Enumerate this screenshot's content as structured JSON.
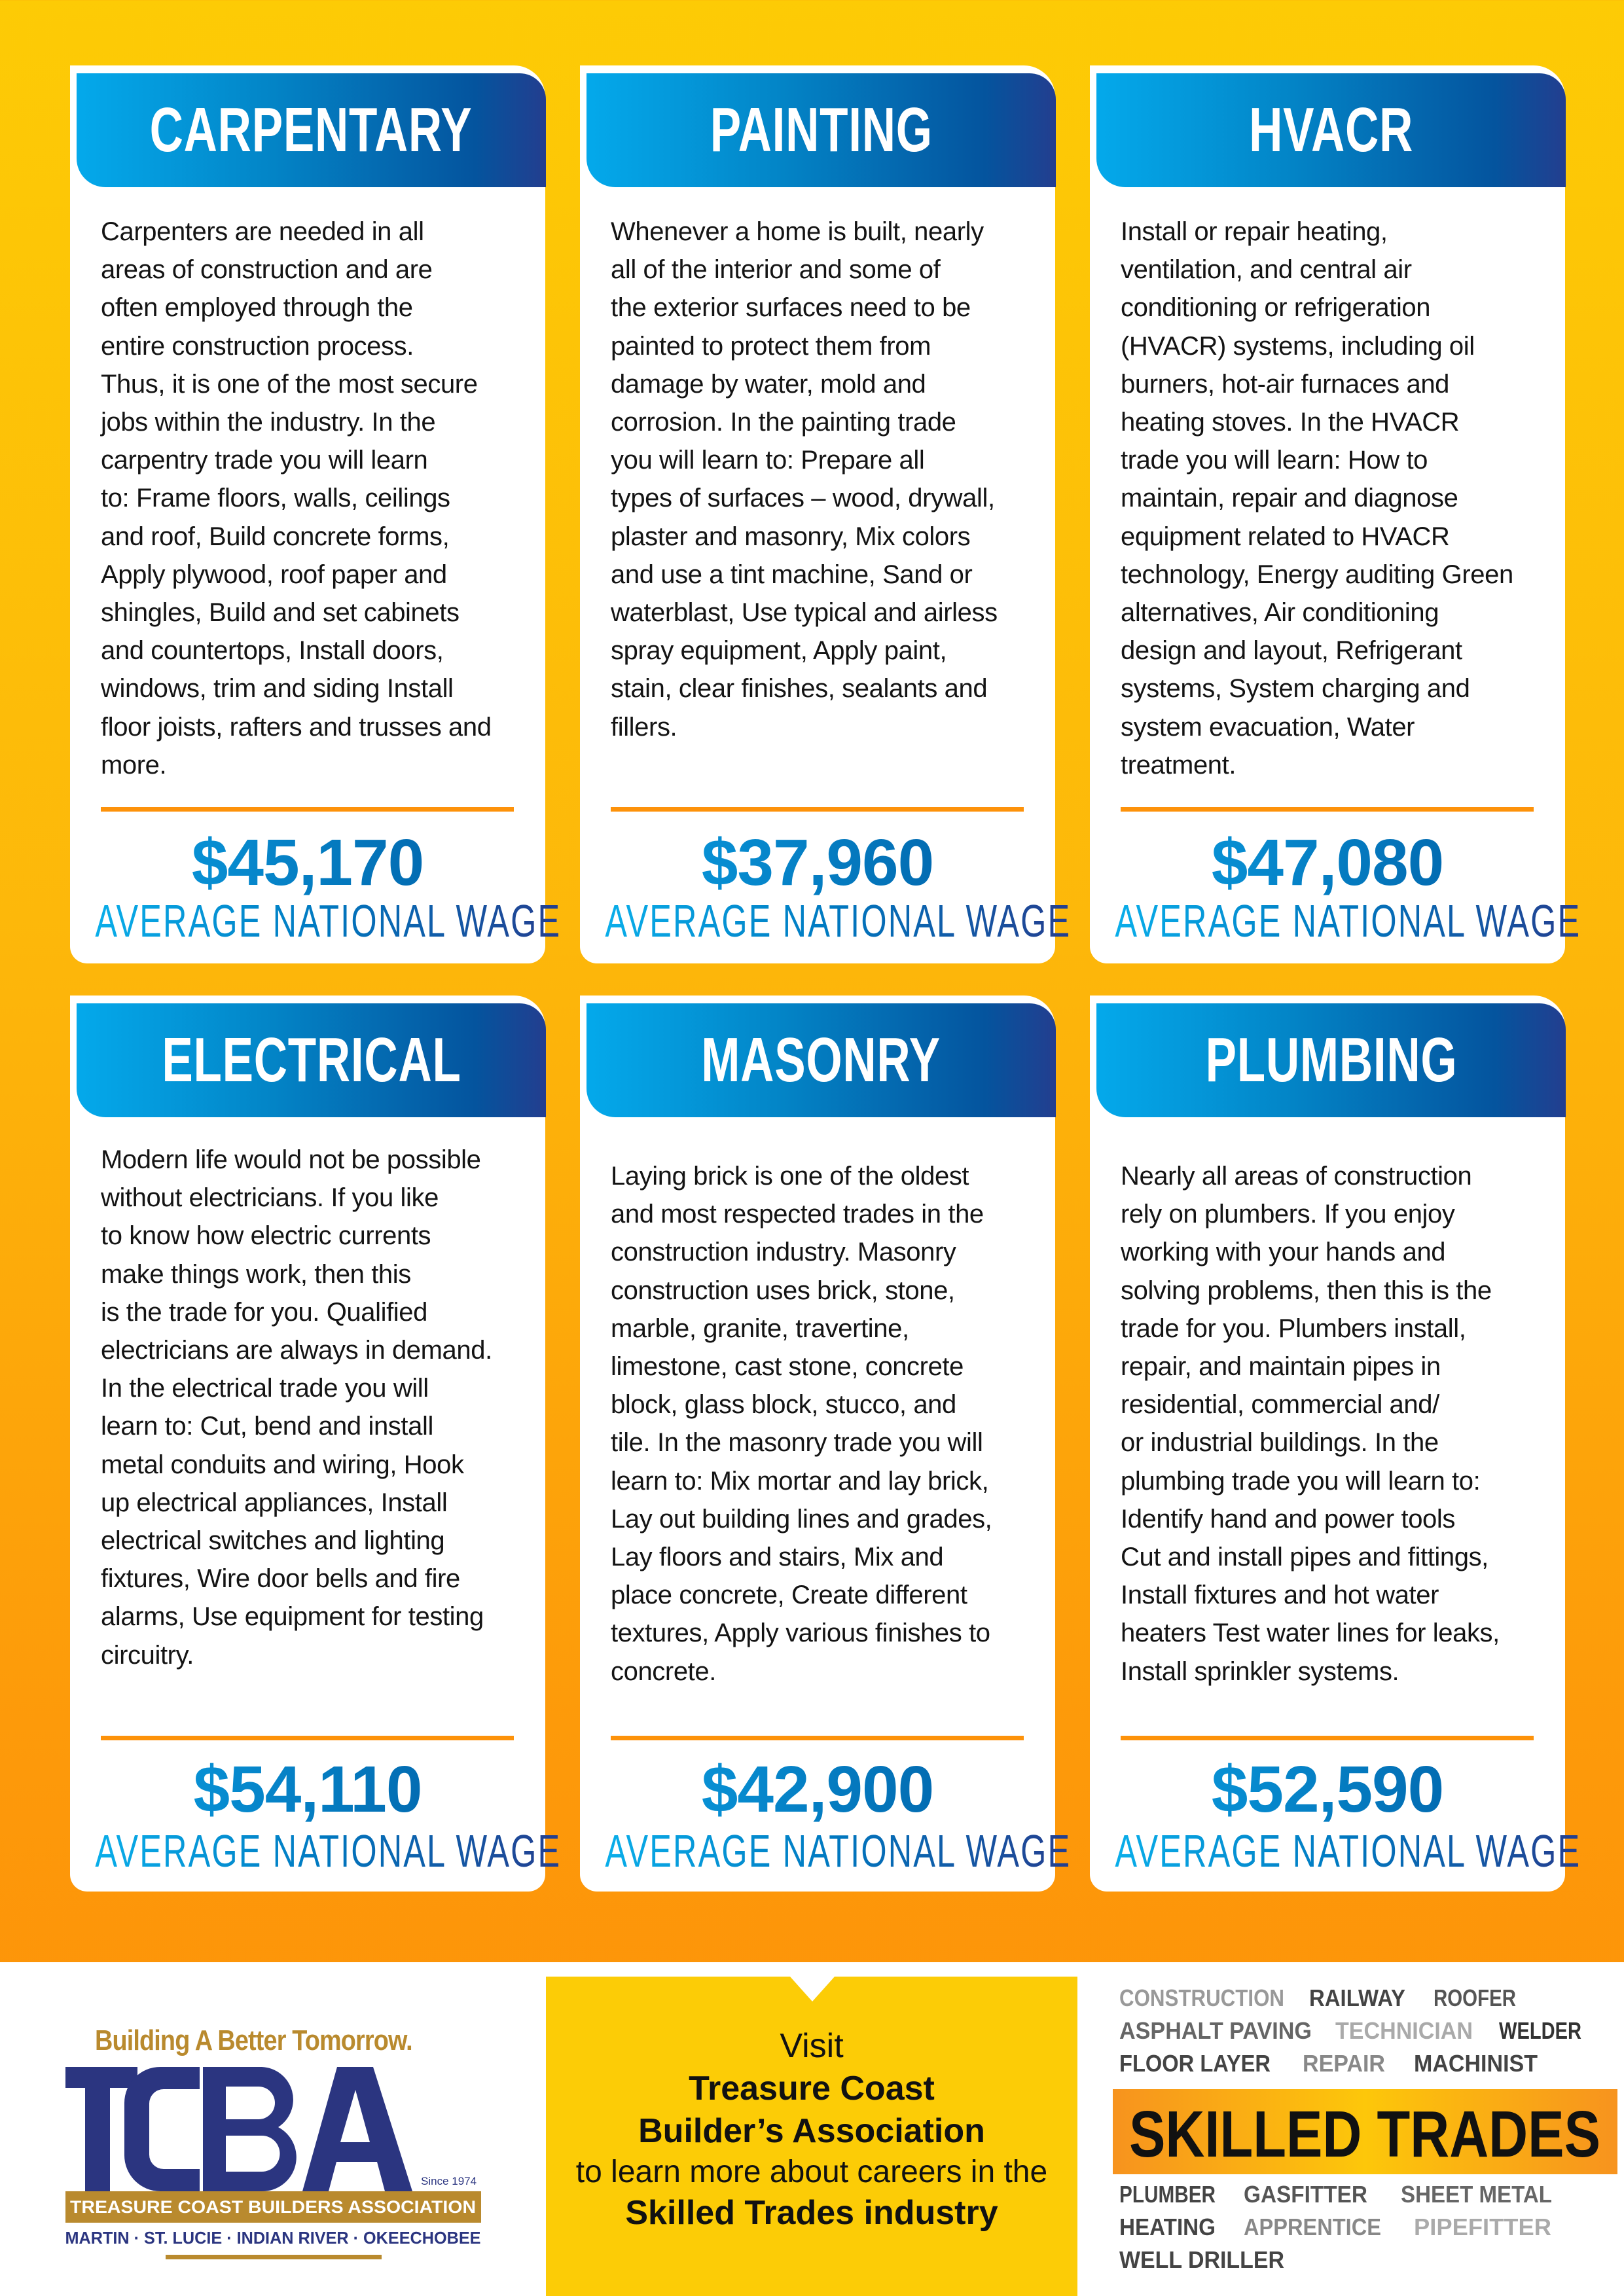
{
  "colors": {
    "background_top": "#fdcb05",
    "background_bottom": "#fd8f08",
    "header_start": "#04a9eb",
    "header_end": "#233e8f",
    "divider": "#fd920a",
    "navy": "#2b3580",
    "gold": "#b98a2e"
  },
  "cards": [
    {
      "title": "CARPENTARY",
      "lines": [
        "Carpenters are needed in all",
        "areas of construction and are",
        "often employed through the",
        "entire construction process.",
        "Thus, it is one of the most secure",
        "jobs within the industry. In the",
        "carpentry trade you will learn",
        "to: Frame floors, walls, ceilings",
        "and roof, Build concrete forms,",
        "Apply plywood, roof paper and",
        "shingles, Build and set cabinets",
        "and countertops, Install doors,",
        "windows, trim and siding Install",
        "floor joists, rafters and trusses and",
        "more."
      ],
      "wage": "$45,170",
      "wage_label": "AVERAGE NATIONAL WAGE"
    },
    {
      "title": "PAINTING",
      "lines": [
        "Whenever a home is built, nearly",
        "all of the interior and some of",
        "the exterior surfaces need to be",
        "painted to protect them from",
        "damage by water, mold and",
        "corrosion. In the painting trade",
        "you will learn to: Prepare all",
        "types of surfaces – wood, drywall,",
        "plaster and masonry, Mix colors",
        "and use a tint machine, Sand or",
        "waterblast, Use typical and airless",
        "spray equipment, Apply paint,",
        "stain, clear finishes, sealants and",
        "fillers."
      ],
      "wage": "$37,960",
      "wage_label": "AVERAGE NATIONAL WAGE"
    },
    {
      "title": "HVACR",
      "lines": [
        "Install or repair heating,",
        "ventilation, and central air",
        "conditioning or refrigeration",
        "(HVACR) systems, including oil",
        "burners, hot-air furnaces and",
        "heating stoves. In the HVACR",
        "trade you will learn: How to",
        "maintain, repair and diagnose",
        "equipment related to HVACR",
        "technology, Energy auditing Green",
        "alternatives, Air conditioning",
        "design and layout, Refrigerant",
        "systems, System charging and",
        "system evacuation, Water",
        "treatment."
      ],
      "wage": "$47,080",
      "wage_label": "AVERAGE NATIONAL WAGE"
    },
    {
      "title": "ELECTRICAL",
      "lines": [
        "Modern life would not be possible",
        "without electricians. If you like",
        "to know how electric currents",
        "make things work, then this",
        "is the trade for you. Qualified",
        "electricians are always in demand.",
        "In the electrical trade you will",
        "learn to: Cut, bend and install",
        "metal conduits and wiring, Hook",
        "up electrical appliances, Install",
        "electrical switches and lighting",
        "fixtures, Wire door bells and fire",
        "alarms, Use equipment for testing",
        "circuitry."
      ],
      "wage": "$54,110",
      "wage_label": "AVERAGE NATIONAL WAGE"
    },
    {
      "title": "MASONRY",
      "lines": [
        "Laying brick is one of the oldest",
        "and most respected trades in the",
        "construction industry. Masonry",
        "construction uses brick, stone,",
        "marble, granite, travertine,",
        "limestone, cast stone, concrete",
        "block, glass block, stucco, and",
        "tile. In the masonry trade you will",
        "learn to: Mix mortar and lay brick,",
        "Lay out building lines and grades,",
        "Lay floors and stairs, Mix and",
        "place concrete, Create different",
        "textures, Apply various finishes to",
        "concrete."
      ],
      "wage": "$42,900",
      "wage_label": "AVERAGE NATIONAL WAGE"
    },
    {
      "title": "PLUMBING",
      "lines": [
        "Nearly all areas of construction",
        "rely on plumbers. If you enjoy",
        "working with your hands and",
        "solving problems, then this is the",
        "trade for you. Plumbers install,",
        "repair, and maintain pipes in",
        "residential, commercial and/",
        "or industrial buildings. In the",
        "plumbing trade you will learn to:",
        "Identify hand and power tools",
        "Cut and install pipes and fittings,",
        "Install fixtures and hot water",
        "heaters Test water lines for leaks,",
        "Install sprinkler systems."
      ],
      "wage": "$52,590",
      "wage_label": "AVERAGE NATIONAL WAGE"
    }
  ],
  "footer": {
    "logo": {
      "tagline": "Building A Better Tomorrow.",
      "letters": "TCBA",
      "since": "Since 1974",
      "name": "TREASURE COAST BUILDERS ASSOCIATION",
      "counties": "MARTIN · ST. LUCIE · INDIAN RIVER · OKEECHOBEE"
    },
    "visit": {
      "line1": "Visit",
      "line2": "Treasure Coast",
      "line3": "Builder’s Association",
      "line4": "to learn more about careers in the",
      "line5": "Skilled Trades industry"
    },
    "word_cloud": {
      "banner": "SKILLED TRADES",
      "words": [
        "CONSTRUCTION",
        "RAILWAY",
        "ASPHALT PAVING",
        "TECHNICIAN",
        "FLOOR LAYER",
        "WELDER",
        "ROOFER",
        "PLUMBER",
        "GASFITTER",
        "SHEET METAL",
        "HEATING",
        "APPRENTICE",
        "PIPEFITTER",
        "WELL DRILLER",
        "MACHINIST",
        "REPAIR"
      ]
    }
  }
}
